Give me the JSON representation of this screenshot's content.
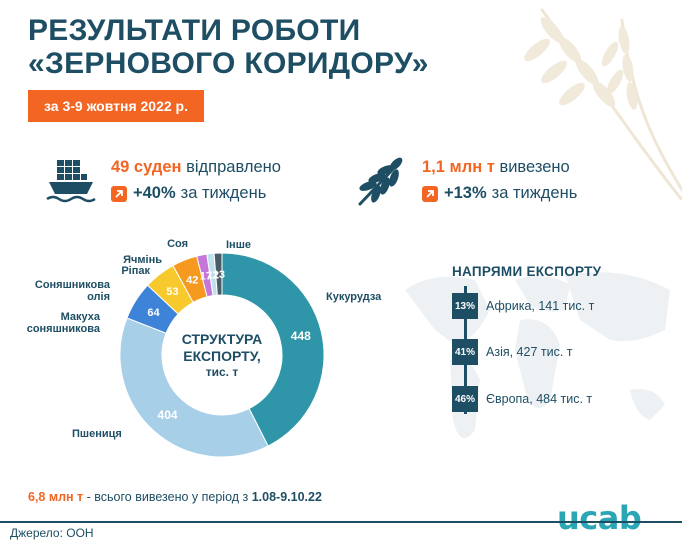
{
  "title_lines": [
    "РЕЗУЛЬТАТИ РОБОТИ",
    "«ЗЕРНОВОГО КОРИДОРУ»"
  ],
  "date_range": "за 3-9 жовтня 2022 р.",
  "stats": {
    "ships": {
      "value": "49 суден",
      "text": "відправлено",
      "change": "+40%",
      "change_text": "за тиждень",
      "icon": "ship-icon"
    },
    "volume": {
      "value": "1,1 млн т",
      "text": "вивезено",
      "change": "+13%",
      "change_text": "за тиждень",
      "icon": "wheat-icon"
    }
  },
  "chart_data": {
    "type": "pie",
    "subtype": "donut",
    "center_label": [
      "СТРУКТУРА",
      "ЕКСПОРТУ,",
      "тис. т"
    ],
    "categories": [
      "Кукурудза",
      "Пшениця",
      "Макуха соняшникова",
      "Соняшникова олія",
      "Ріпак",
      "Ячмінь",
      "Соя",
      "Інше"
    ],
    "values": [
      448,
      404,
      64,
      53,
      42,
      17,
      12,
      13
    ],
    "colors": [
      "#2e96a8",
      "#a8cfe8",
      "#3d83d8",
      "#f7c92c",
      "#f59a1e",
      "#c477d9",
      "#bfe0ec",
      "#4a5d66"
    ]
  },
  "export_directions": {
    "title": "НАПРЯМИ ЕКСПОРТУ",
    "items": [
      {
        "pct": "13%",
        "label": "Африка, 141 тис. т"
      },
      {
        "pct": "41%",
        "label": "Азія, 427 тис. т"
      },
      {
        "pct": "46%",
        "label": "Європа, 484 тис. т"
      }
    ]
  },
  "footer": {
    "total": "6,8 млн т",
    "total_text": " - всього вивезено у період з ",
    "period": "1.08-9.10.22",
    "source": "Джерело: ООН",
    "logo": "ucab"
  },
  "colors": {
    "accent": "#f26522",
    "primary": "#1e4e64",
    "brand": "#2aa6b5"
  }
}
